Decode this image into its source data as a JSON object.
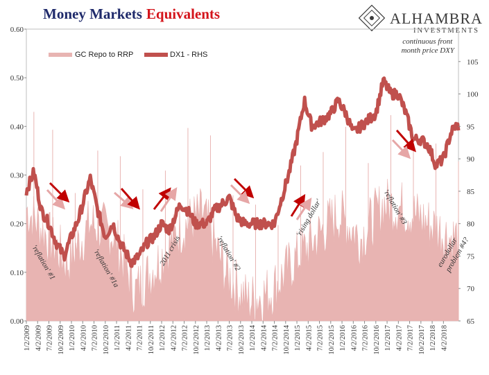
{
  "title": {
    "part1": "Money Markets",
    "part2": "Equivalents"
  },
  "logo": {
    "name": "ALHAMBRA",
    "sub": "INVESTMENTS"
  },
  "colors": {
    "title_blue": "#1f2a6b",
    "title_red": "#d4141b",
    "area": "#e8b4b2",
    "line": "#c0504d",
    "arrow_dark": "#c00000",
    "arrow_light": "#e6a6a6"
  },
  "chart_data": {
    "type": "area",
    "legend": [
      "GC Repo to RRP",
      "DX1 - RHS"
    ],
    "left_axis": {
      "min": 0,
      "max": 0.6,
      "ticks": [
        "0.00",
        "0.10",
        "0.20",
        "0.30",
        "0.40",
        "0.50",
        "0.60"
      ]
    },
    "right_axis": {
      "min": 65,
      "max": 110,
      "ticks": [
        "65",
        "70",
        "75",
        "80",
        "85",
        "90",
        "95",
        "100",
        "105"
      ]
    },
    "x_ticks": [
      "1/2/2009",
      "4/2/2009",
      "7/2/2009",
      "10/2/2009",
      "1/2/2010",
      "4/2/2010",
      "7/2/2010",
      "10/2/2010",
      "1/2/2011",
      "4/2/2011",
      "7/2/2011",
      "10/2/2011",
      "1/2/2012",
      "4/2/2012",
      "7/2/2012",
      "10/2/2012",
      "1/2/2013",
      "4/2/2013",
      "7/2/2013",
      "10/2/2013",
      "1/2/2014",
      "4/2/2014",
      "7/2/2014",
      "10/2/2014",
      "1/2/2015",
      "4/2/2015",
      "7/2/2015",
      "10/2/2015",
      "1/2/2016",
      "4/2/2016",
      "7/2/2016",
      "10/2/2016",
      "1/2/2017",
      "4/2/2017",
      "7/2/2017",
      "10/2/2017",
      "1/2/2018",
      "4/2/2018"
    ],
    "dx1_series": {
      "name": "DX1 - RHS",
      "points": [
        [
          "2009-01",
          85
        ],
        [
          "2009-03",
          88
        ],
        [
          "2009-05",
          82
        ],
        [
          "2009-07",
          80
        ],
        [
          "2009-09",
          77
        ],
        [
          "2009-11",
          75
        ],
        [
          "2010-01",
          78
        ],
        [
          "2010-03",
          81
        ],
        [
          "2010-06",
          87
        ],
        [
          "2010-08",
          82
        ],
        [
          "2010-10",
          78
        ],
        [
          "2010-12",
          80
        ],
        [
          "2011-02",
          77
        ],
        [
          "2011-05",
          74
        ],
        [
          "2011-07",
          75
        ],
        [
          "2011-09",
          77
        ],
        [
          "2011-11",
          78
        ],
        [
          "2012-01",
          80
        ],
        [
          "2012-03",
          79
        ],
        [
          "2012-06",
          83
        ],
        [
          "2012-08",
          82
        ],
        [
          "2012-10",
          80
        ],
        [
          "2013-01",
          80
        ],
        [
          "2013-03",
          82
        ],
        [
          "2013-05",
          83
        ],
        [
          "2013-07",
          84
        ],
        [
          "2013-09",
          81
        ],
        [
          "2013-11",
          80
        ],
        [
          "2014-02",
          80
        ],
        [
          "2014-05",
          80
        ],
        [
          "2014-07",
          80
        ],
        [
          "2014-09",
          84
        ],
        [
          "2014-11",
          88
        ],
        [
          "2015-01",
          93
        ],
        [
          "2015-03",
          99
        ],
        [
          "2015-05",
          95
        ],
        [
          "2015-08",
          96
        ],
        [
          "2015-10",
          97
        ],
        [
          "2015-12",
          99
        ],
        [
          "2016-02",
          97
        ],
        [
          "2016-04",
          94
        ],
        [
          "2016-06",
          95
        ],
        [
          "2016-08",
          96
        ],
        [
          "2016-10",
          97
        ],
        [
          "2016-12",
          102
        ],
        [
          "2017-02",
          100
        ],
        [
          "2017-04",
          100
        ],
        [
          "2017-06",
          97
        ],
        [
          "2017-08",
          93
        ],
        [
          "2017-10",
          93
        ],
        [
          "2017-12",
          92
        ],
        [
          "2018-02",
          89
        ],
        [
          "2018-04",
          90
        ],
        [
          "2018-06",
          94
        ],
        [
          "2018-07",
          95
        ]
      ]
    },
    "gc_series": {
      "name": "GC Repo to RRP",
      "points": [
        [
          "2009-01",
          0.23
        ],
        [
          "2009-06",
          0.18
        ],
        [
          "2009-12",
          0.12
        ],
        [
          "2010-06",
          0.2
        ],
        [
          "2010-12",
          0.18
        ],
        [
          "2011-06",
          0.06
        ],
        [
          "2011-12",
          0.12
        ],
        [
          "2012-06",
          0.19
        ],
        [
          "2012-12",
          0.22
        ],
        [
          "2013-06",
          0.1
        ],
        [
          "2013-12",
          0.04
        ],
        [
          "2014-06",
          0.06
        ],
        [
          "2014-12",
          0.12
        ],
        [
          "2015-06",
          0.17
        ],
        [
          "2015-12",
          0.22
        ],
        [
          "2016-06",
          0.17
        ],
        [
          "2016-12",
          0.24
        ],
        [
          "2017-06",
          0.23
        ],
        [
          "2017-12",
          0.2
        ],
        [
          "2018-06",
          0.17
        ]
      ]
    },
    "annotations": [
      "continuous front month price DXY",
      "'reflation' #1",
      "'reflation' #1a",
      "2011 crisis",
      "'reflation' #2",
      "'rising dollar'",
      "'reflation' #3",
      "eurodollar problem #4?"
    ]
  }
}
